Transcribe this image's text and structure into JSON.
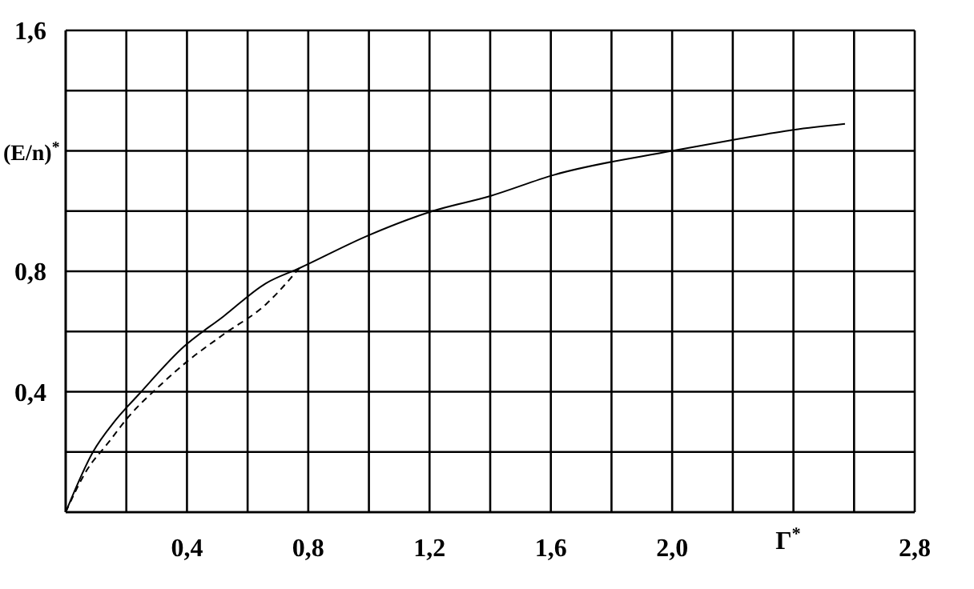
{
  "chart_data": {
    "type": "line",
    "xlabel": "Г$^{*}$",
    "ylabel": "(E/n)$^{*}$",
    "series": [
      {
        "color": "#000000",
        "line_style": "solid",
        "x": [
          0,
          0.09,
          0.16,
          0.24,
          0.39,
          0.52,
          0.66,
          0.77,
          1.0,
          1.21,
          1.4,
          1.61,
          2.0,
          2.22,
          2.4,
          2.57
        ],
        "values": [
          0,
          0.2,
          0.3,
          0.39,
          0.55,
          0.65,
          0.76,
          0.81,
          0.92,
          1.0,
          1.05,
          1.12,
          1.2,
          1.24,
          1.27,
          1.29
        ]
      },
      {
        "color": "#000000",
        "line_style": "dashed",
        "x": [
          0,
          0.07,
          0.14,
          0.21,
          0.31,
          0.4,
          0.52,
          0.66,
          0.77
        ],
        "values": [
          0,
          0.14,
          0.23,
          0.32,
          0.42,
          0.5,
          0.59,
          0.69,
          0.81
        ]
      }
    ],
    "xlim": [
      0,
      2.8
    ],
    "ylim": [
      0,
      1.6
    ],
    "xticks": [
      {
        "value": 0,
        "label": null
      },
      {
        "value": 0.2,
        "label": null
      },
      {
        "value": 0.4,
        "label": "0,4"
      },
      {
        "value": 0.6,
        "label": null
      },
      {
        "value": 0.8,
        "label": "0,8"
      },
      {
        "value": 1.0,
        "label": null
      },
      {
        "value": 1.2,
        "label": "1,2"
      },
      {
        "value": 1.4,
        "label": null
      },
      {
        "value": 1.6,
        "label": "1,6"
      },
      {
        "value": 1.8,
        "label": null
      },
      {
        "value": 2.0,
        "label": "2,0"
      },
      {
        "value": 2.2,
        "label": null
      },
      {
        "value": 2.4,
        "label": null
      },
      {
        "value": 2.6,
        "label": null
      },
      {
        "value": 2.8,
        "label": "2,8"
      }
    ],
    "yticks": [
      {
        "value": 0,
        "label": null
      },
      {
        "value": 0.2,
        "label": null
      },
      {
        "value": 0.4,
        "label": "0,4"
      },
      {
        "value": 0.6,
        "label": null
      },
      {
        "value": 0.8,
        "label": "0,8"
      },
      {
        "value": 1.0,
        "label": null
      },
      {
        "value": 1.2,
        "label": null
      },
      {
        "value": 1.4,
        "label": null
      },
      {
        "value": 1.6,
        "label": "1,6"
      }
    ],
    "grid": true,
    "marker": "none"
  }
}
